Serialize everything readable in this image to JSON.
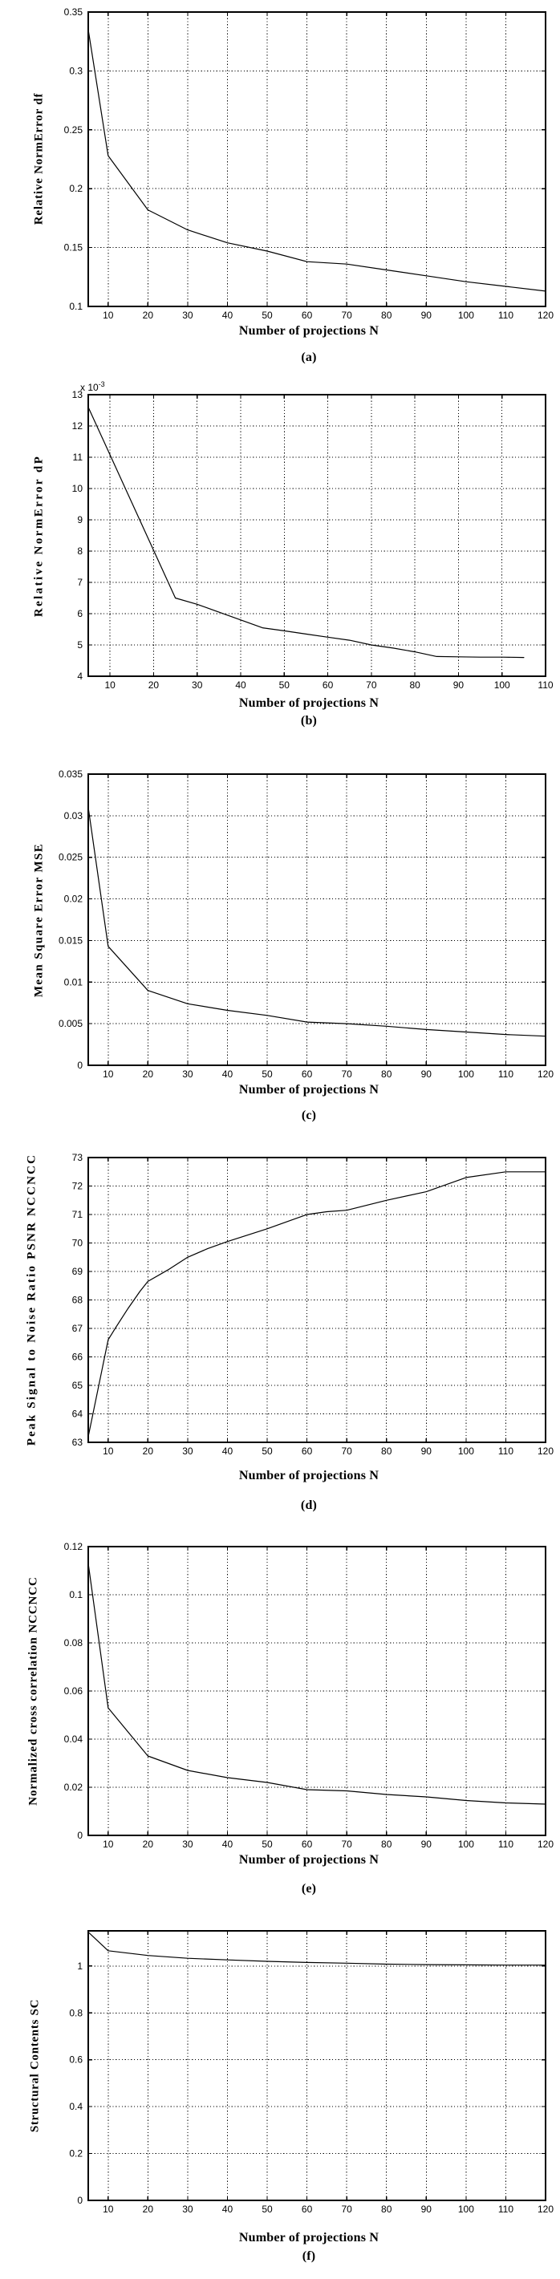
{
  "page": {
    "background": "#ffffff",
    "ink": "#000000"
  },
  "chart_data": [
    {
      "id": "a",
      "type": "line",
      "caption": "(a)",
      "ylabel": "Relative NormError df",
      "xlabel": "Number of projections N",
      "legend": null,
      "grid": "dotted",
      "line_color": "#000000",
      "xlim": [
        5,
        120
      ],
      "ylim": [
        0.1,
        0.35
      ],
      "xticks": [
        10,
        20,
        30,
        40,
        50,
        60,
        70,
        80,
        90,
        100,
        110,
        120
      ],
      "yticks": [
        "0.1",
        "0.15",
        "0.2",
        "0.25",
        "0.3",
        "0.35"
      ],
      "x": [
        5,
        10,
        20,
        30,
        40,
        50,
        60,
        70,
        80,
        90,
        100,
        110,
        120
      ],
      "y": [
        0.335,
        0.228,
        0.182,
        0.165,
        0.154,
        0.147,
        0.138,
        0.136,
        0.131,
        0.126,
        0.121,
        0.117,
        0.113
      ]
    },
    {
      "id": "b",
      "type": "line",
      "caption": "(b)",
      "ylabel": "Relative NormError dP",
      "xlabel": "Number of projections N",
      "y_multiplier": {
        "base": "x 10",
        "exp": "-3"
      },
      "legend": null,
      "grid": "dotted",
      "line_color": "#000000",
      "xlim": [
        5,
        110
      ],
      "ylim": [
        4,
        13
      ],
      "xticks": [
        10,
        20,
        30,
        40,
        50,
        60,
        70,
        80,
        90,
        100,
        110
      ],
      "yticks": [
        "4",
        "5",
        "6",
        "7",
        "8",
        "9",
        "10",
        "11",
        "12",
        "13"
      ],
      "x": [
        5,
        25,
        30,
        35,
        40,
        45,
        50,
        55,
        60,
        65,
        70,
        75,
        80,
        85,
        90,
        95,
        100,
        105
      ],
      "y": [
        12.6,
        6.5,
        6.3,
        6.05,
        5.8,
        5.55,
        5.45,
        5.35,
        5.25,
        5.15,
        5.0,
        4.9,
        4.78,
        4.63,
        4.62,
        4.61,
        4.61,
        4.6
      ]
    },
    {
      "id": "c",
      "type": "line",
      "caption": "(c)",
      "ylabel": "Mean Square Error MSE",
      "xlabel": "Number of projections N",
      "legend": null,
      "grid": "dotted",
      "line_color": "#000000",
      "xlim": [
        5,
        120
      ],
      "ylim": [
        0,
        0.035
      ],
      "xticks": [
        10,
        20,
        30,
        40,
        50,
        60,
        70,
        80,
        90,
        100,
        110,
        120
      ],
      "yticks": [
        "0",
        "0.005",
        "0.01",
        "0.015",
        "0.02",
        "0.025",
        "0.03",
        "0.035"
      ],
      "x": [
        5,
        10,
        20,
        30,
        40,
        50,
        60,
        70,
        80,
        90,
        100,
        110,
        120
      ],
      "y": [
        0.031,
        0.0143,
        0.009,
        0.0074,
        0.0066,
        0.006,
        0.0052,
        0.005,
        0.0047,
        0.0043,
        0.004,
        0.0037,
        0.0035
      ]
    },
    {
      "id": "d",
      "type": "line",
      "caption": "(d)",
      "ylabel": "Peak Signal to Noise Ratio PSNR  NCCNCC",
      "xlabel": "Number of projections N",
      "legend": null,
      "grid": "dotted",
      "line_color": "#000000",
      "xlim": [
        5,
        120
      ],
      "ylim": [
        63,
        73
      ],
      "xticks": [
        10,
        20,
        30,
        40,
        50,
        60,
        70,
        80,
        90,
        100,
        110,
        120
      ],
      "yticks": [
        "63",
        "64",
        "65",
        "66",
        "67",
        "68",
        "69",
        "70",
        "71",
        "72",
        "73"
      ],
      "x": [
        5,
        10,
        12,
        15,
        18,
        20,
        25,
        30,
        35,
        40,
        50,
        60,
        65,
        70,
        80,
        90,
        100,
        110,
        120
      ],
      "y": [
        63.2,
        66.6,
        67.05,
        67.7,
        68.3,
        68.65,
        69.05,
        69.5,
        69.8,
        70.05,
        70.5,
        71.0,
        71.1,
        71.15,
        71.5,
        71.8,
        72.3,
        72.5,
        72.5
      ]
    },
    {
      "id": "e",
      "type": "line",
      "caption": "(e)",
      "ylabel": "Normalized cross correlation NCCNCC",
      "xlabel": "Number of projections N",
      "legend": null,
      "grid": "dotted",
      "line_color": "#000000",
      "xlim": [
        5,
        120
      ],
      "ylim": [
        0,
        0.12
      ],
      "xticks": [
        10,
        20,
        30,
        40,
        50,
        60,
        70,
        80,
        90,
        100,
        110,
        120
      ],
      "yticks": [
        "0",
        "0.02",
        "0.04",
        "0.06",
        "0.08",
        "0.1",
        "0.12"
      ],
      "x": [
        5,
        10,
        20,
        30,
        40,
        50,
        60,
        70,
        80,
        90,
        100,
        110,
        120
      ],
      "y": [
        0.113,
        0.053,
        0.033,
        0.027,
        0.024,
        0.022,
        0.019,
        0.0185,
        0.017,
        0.016,
        0.0145,
        0.0135,
        0.013
      ]
    },
    {
      "id": "f",
      "type": "line",
      "caption": "(f)",
      "ylabel": "Structural Contents SC",
      "xlabel": "Number of projections N",
      "legend": null,
      "grid": "dotted",
      "line_color": "#000000",
      "xlim": [
        5,
        120
      ],
      "ylim": [
        0,
        1.15
      ],
      "xticks": [
        10,
        20,
        30,
        40,
        50,
        60,
        70,
        80,
        90,
        100,
        110,
        120
      ],
      "yticks": [
        "0",
        "0.2",
        "0.4",
        "0.6",
        "0.8",
        "1"
      ],
      "x": [
        5,
        10,
        20,
        30,
        40,
        50,
        60,
        70,
        80,
        90,
        100,
        110,
        120
      ],
      "y": [
        1.145,
        1.065,
        1.045,
        1.033,
        1.026,
        1.02,
        1.015,
        1.012,
        1.008,
        1.006,
        1.005,
        1.004,
        1.004
      ]
    }
  ]
}
